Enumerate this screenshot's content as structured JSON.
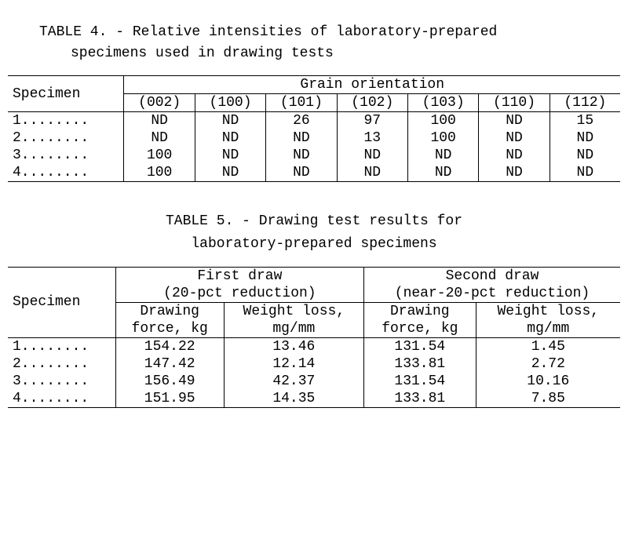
{
  "table4": {
    "caption_line1": "TABLE 4. - Relative intensities of laboratory-prepared",
    "caption_line2": "specimens used in drawing tests",
    "col_specimen": "Specimen",
    "col_grain": "Grain orientation",
    "subcols": [
      "(002)",
      "(100)",
      "(101)",
      "(102)",
      "(103)",
      "(110)",
      "(112)"
    ],
    "rows": [
      {
        "label": "1........",
        "vals": [
          "ND",
          "ND",
          "26",
          "97",
          "100",
          "ND",
          "15"
        ]
      },
      {
        "label": "2........",
        "vals": [
          "ND",
          "ND",
          "ND",
          "13",
          "100",
          "ND",
          "ND"
        ]
      },
      {
        "label": "3........",
        "vals": [
          "100",
          "ND",
          "ND",
          "ND",
          "ND",
          "ND",
          "ND"
        ]
      },
      {
        "label": "4........",
        "vals": [
          "100",
          "ND",
          "ND",
          "ND",
          "ND",
          "ND",
          "ND"
        ]
      }
    ]
  },
  "table5": {
    "caption_line1": "TABLE 5. - Drawing test results for",
    "caption_line2": "laboratory-prepared specimens",
    "col_specimen": "Specimen",
    "first_draw_label1": "First draw",
    "first_draw_label2": "(20-pct reduction)",
    "second_draw_label1": "Second draw",
    "second_draw_label2": "(near-20-pct reduction)",
    "sub_force1": "Drawing",
    "sub_force2": "force, kg",
    "sub_wl1": "Weight loss,",
    "sub_wl2": "mg/mm",
    "rows": [
      {
        "label": "1........",
        "vals": [
          "154.22",
          "13.46",
          "131.54",
          "1.45"
        ]
      },
      {
        "label": "2........",
        "vals": [
          "147.42",
          "12.14",
          "133.81",
          "2.72"
        ]
      },
      {
        "label": "3........",
        "vals": [
          "156.49",
          "42.37",
          "131.54",
          "10.16"
        ]
      },
      {
        "label": "4........",
        "vals": [
          "151.95",
          "14.35",
          "133.81",
          "7.85"
        ]
      }
    ]
  }
}
